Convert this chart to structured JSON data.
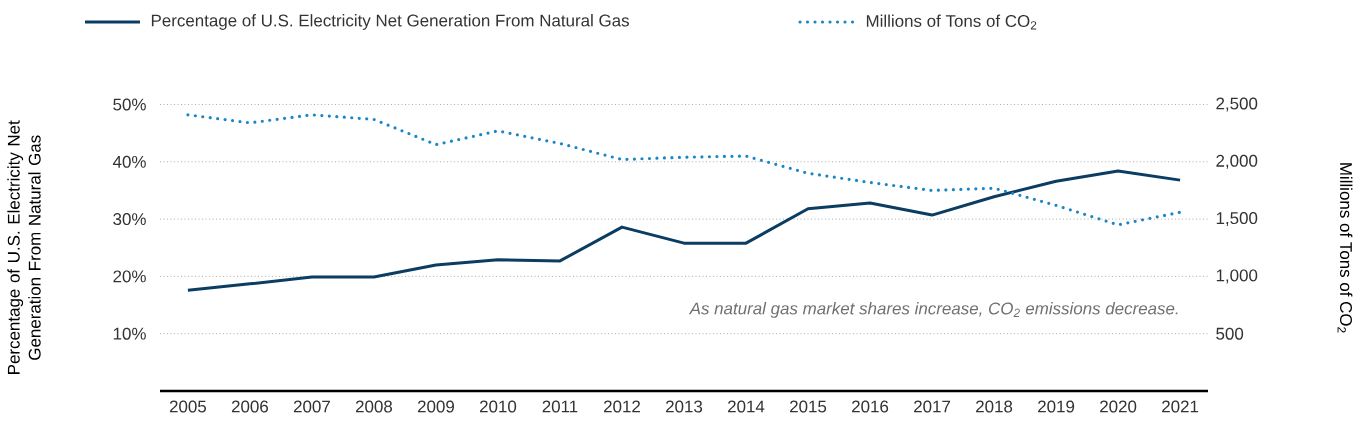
{
  "chart_data": {
    "type": "line",
    "categories": [
      "2005",
      "2006",
      "2007",
      "2008",
      "2009",
      "2010",
      "2011",
      "2012",
      "2013",
      "2014",
      "2015",
      "2016",
      "2017",
      "2018",
      "2019",
      "2020",
      "2021"
    ],
    "series": [
      {
        "name": "Percentage of U.S. Electricity Net Generation From Natural Gas",
        "color": "#0b3d63",
        "line_style": "solid",
        "values": [
          17.6,
          18.7,
          19.9,
          19.9,
          22.0,
          22.9,
          22.7,
          28.6,
          25.8,
          25.8,
          31.8,
          32.8,
          30.7,
          33.9,
          36.6,
          38.4,
          36.8
        ]
      },
      {
        "name": "Millions of Tons of CO$_{2}$",
        "color": "#1a86c7",
        "line_style": "dotted",
        "axis": "y2",
        "values": [
          2410,
          2340,
          2410,
          2370,
          2150,
          2270,
          2160,
          2020,
          2040,
          2050,
          1900,
          1820,
          1750,
          1770,
          1620,
          1450,
          1560
        ]
      }
    ],
    "ylabel": "Percentage of U.S. Electricity Net Generation From Natural Gas",
    "y2label": "Millions of Tons of CO$_{2}$",
    "ylim": [
      0,
      50
    ],
    "yticks": [
      {
        "value": 10,
        "label": "10%"
      },
      {
        "value": 20,
        "label": "20%"
      },
      {
        "value": 30,
        "label": "30%"
      },
      {
        "value": 40,
        "label": "40%"
      },
      {
        "value": 50,
        "label": "50%"
      }
    ],
    "y2lim": [
      0,
      2500
    ],
    "y2ticks": [
      {
        "value": 500,
        "label": "500"
      },
      {
        "value": 1000,
        "label": "1,000"
      },
      {
        "value": 1500,
        "label": "1,500"
      },
      {
        "value": 2000,
        "label": "2,000"
      },
      {
        "value": 2500,
        "label": "2,500"
      }
    ],
    "annotations": [
      "As natural gas market shares increase, CO$_{2}$ emissions decrease."
    ],
    "grid": "y",
    "legend": "top",
    "marker": "none"
  }
}
